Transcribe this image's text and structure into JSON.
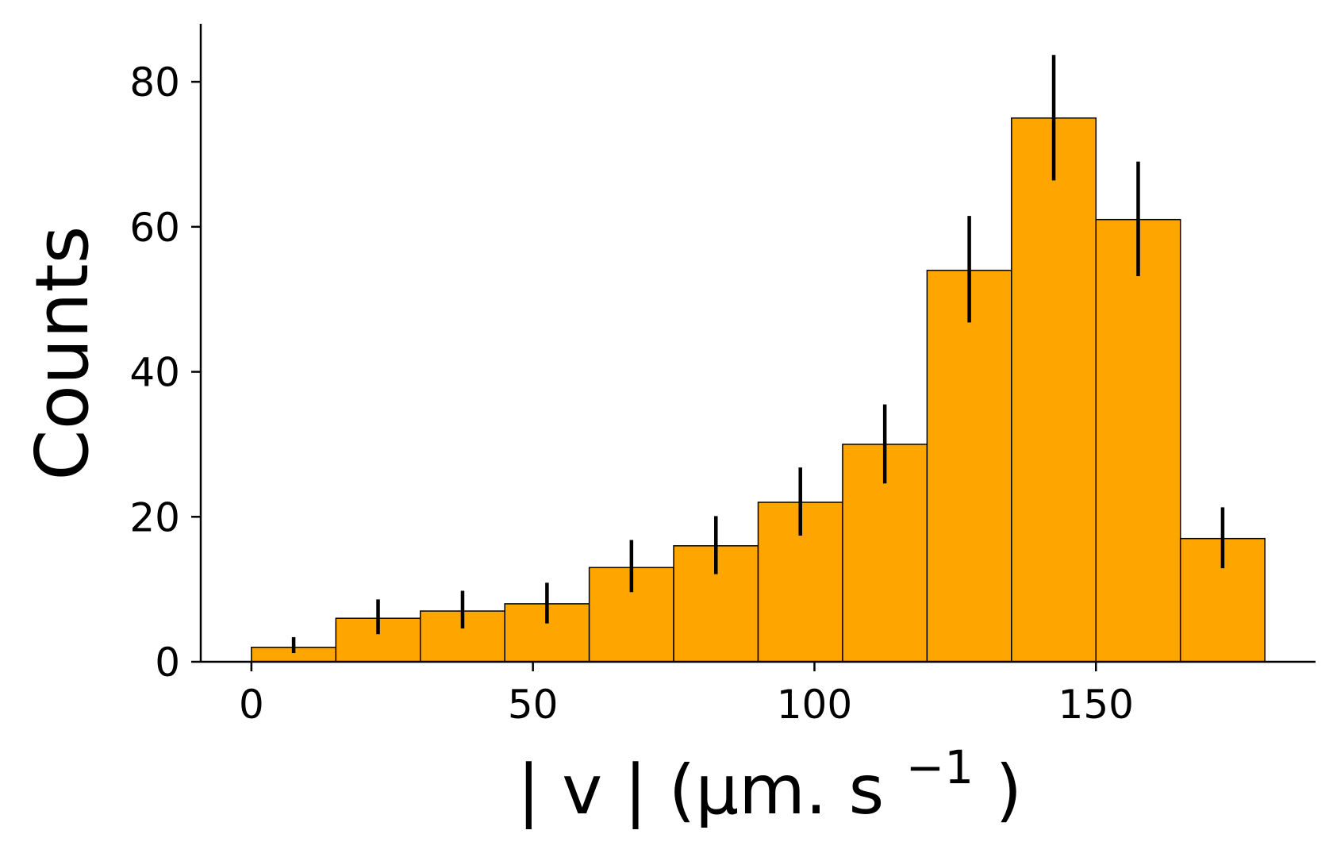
{
  "chart_data": {
    "type": "bar",
    "title": "",
    "xlabel_main": "| v |",
    "xlabel_unit_open": "(µm. s",
    "xlabel_sup": "−1",
    "xlabel_unit_close": ")",
    "ylabel": "Counts",
    "bin_width": 15,
    "bin_edges": [
      0,
      15,
      30,
      45,
      60,
      75,
      90,
      105,
      120,
      135,
      150,
      165,
      180
    ],
    "values": [
      2,
      6,
      7,
      8,
      13,
      16,
      22,
      30,
      54,
      75,
      61,
      17
    ],
    "error_low": [
      1.2,
      3.8,
      4.6,
      5.3,
      9.6,
      12.1,
      17.4,
      24.6,
      46.8,
      66.4,
      53.2,
      12.9
    ],
    "error_high": [
      3.4,
      8.6,
      9.8,
      10.9,
      16.8,
      20.1,
      26.8,
      35.5,
      61.5,
      83.7,
      69.0,
      21.3
    ],
    "xlim": [
      -9,
      189
    ],
    "ylim": [
      0,
      88
    ],
    "x_ticks": [
      "0",
      "50",
      "100",
      "150"
    ],
    "x_tick_values": [
      0,
      50,
      100,
      150
    ],
    "y_ticks": [
      "0",
      "20",
      "40",
      "60",
      "80"
    ],
    "y_tick_values": [
      0,
      20,
      40,
      60,
      80
    ],
    "bar_color": "#FFA500",
    "bar_edge_color": "#000000",
    "error_bar_color": "#000000",
    "grid": false,
    "legend": "none"
  }
}
